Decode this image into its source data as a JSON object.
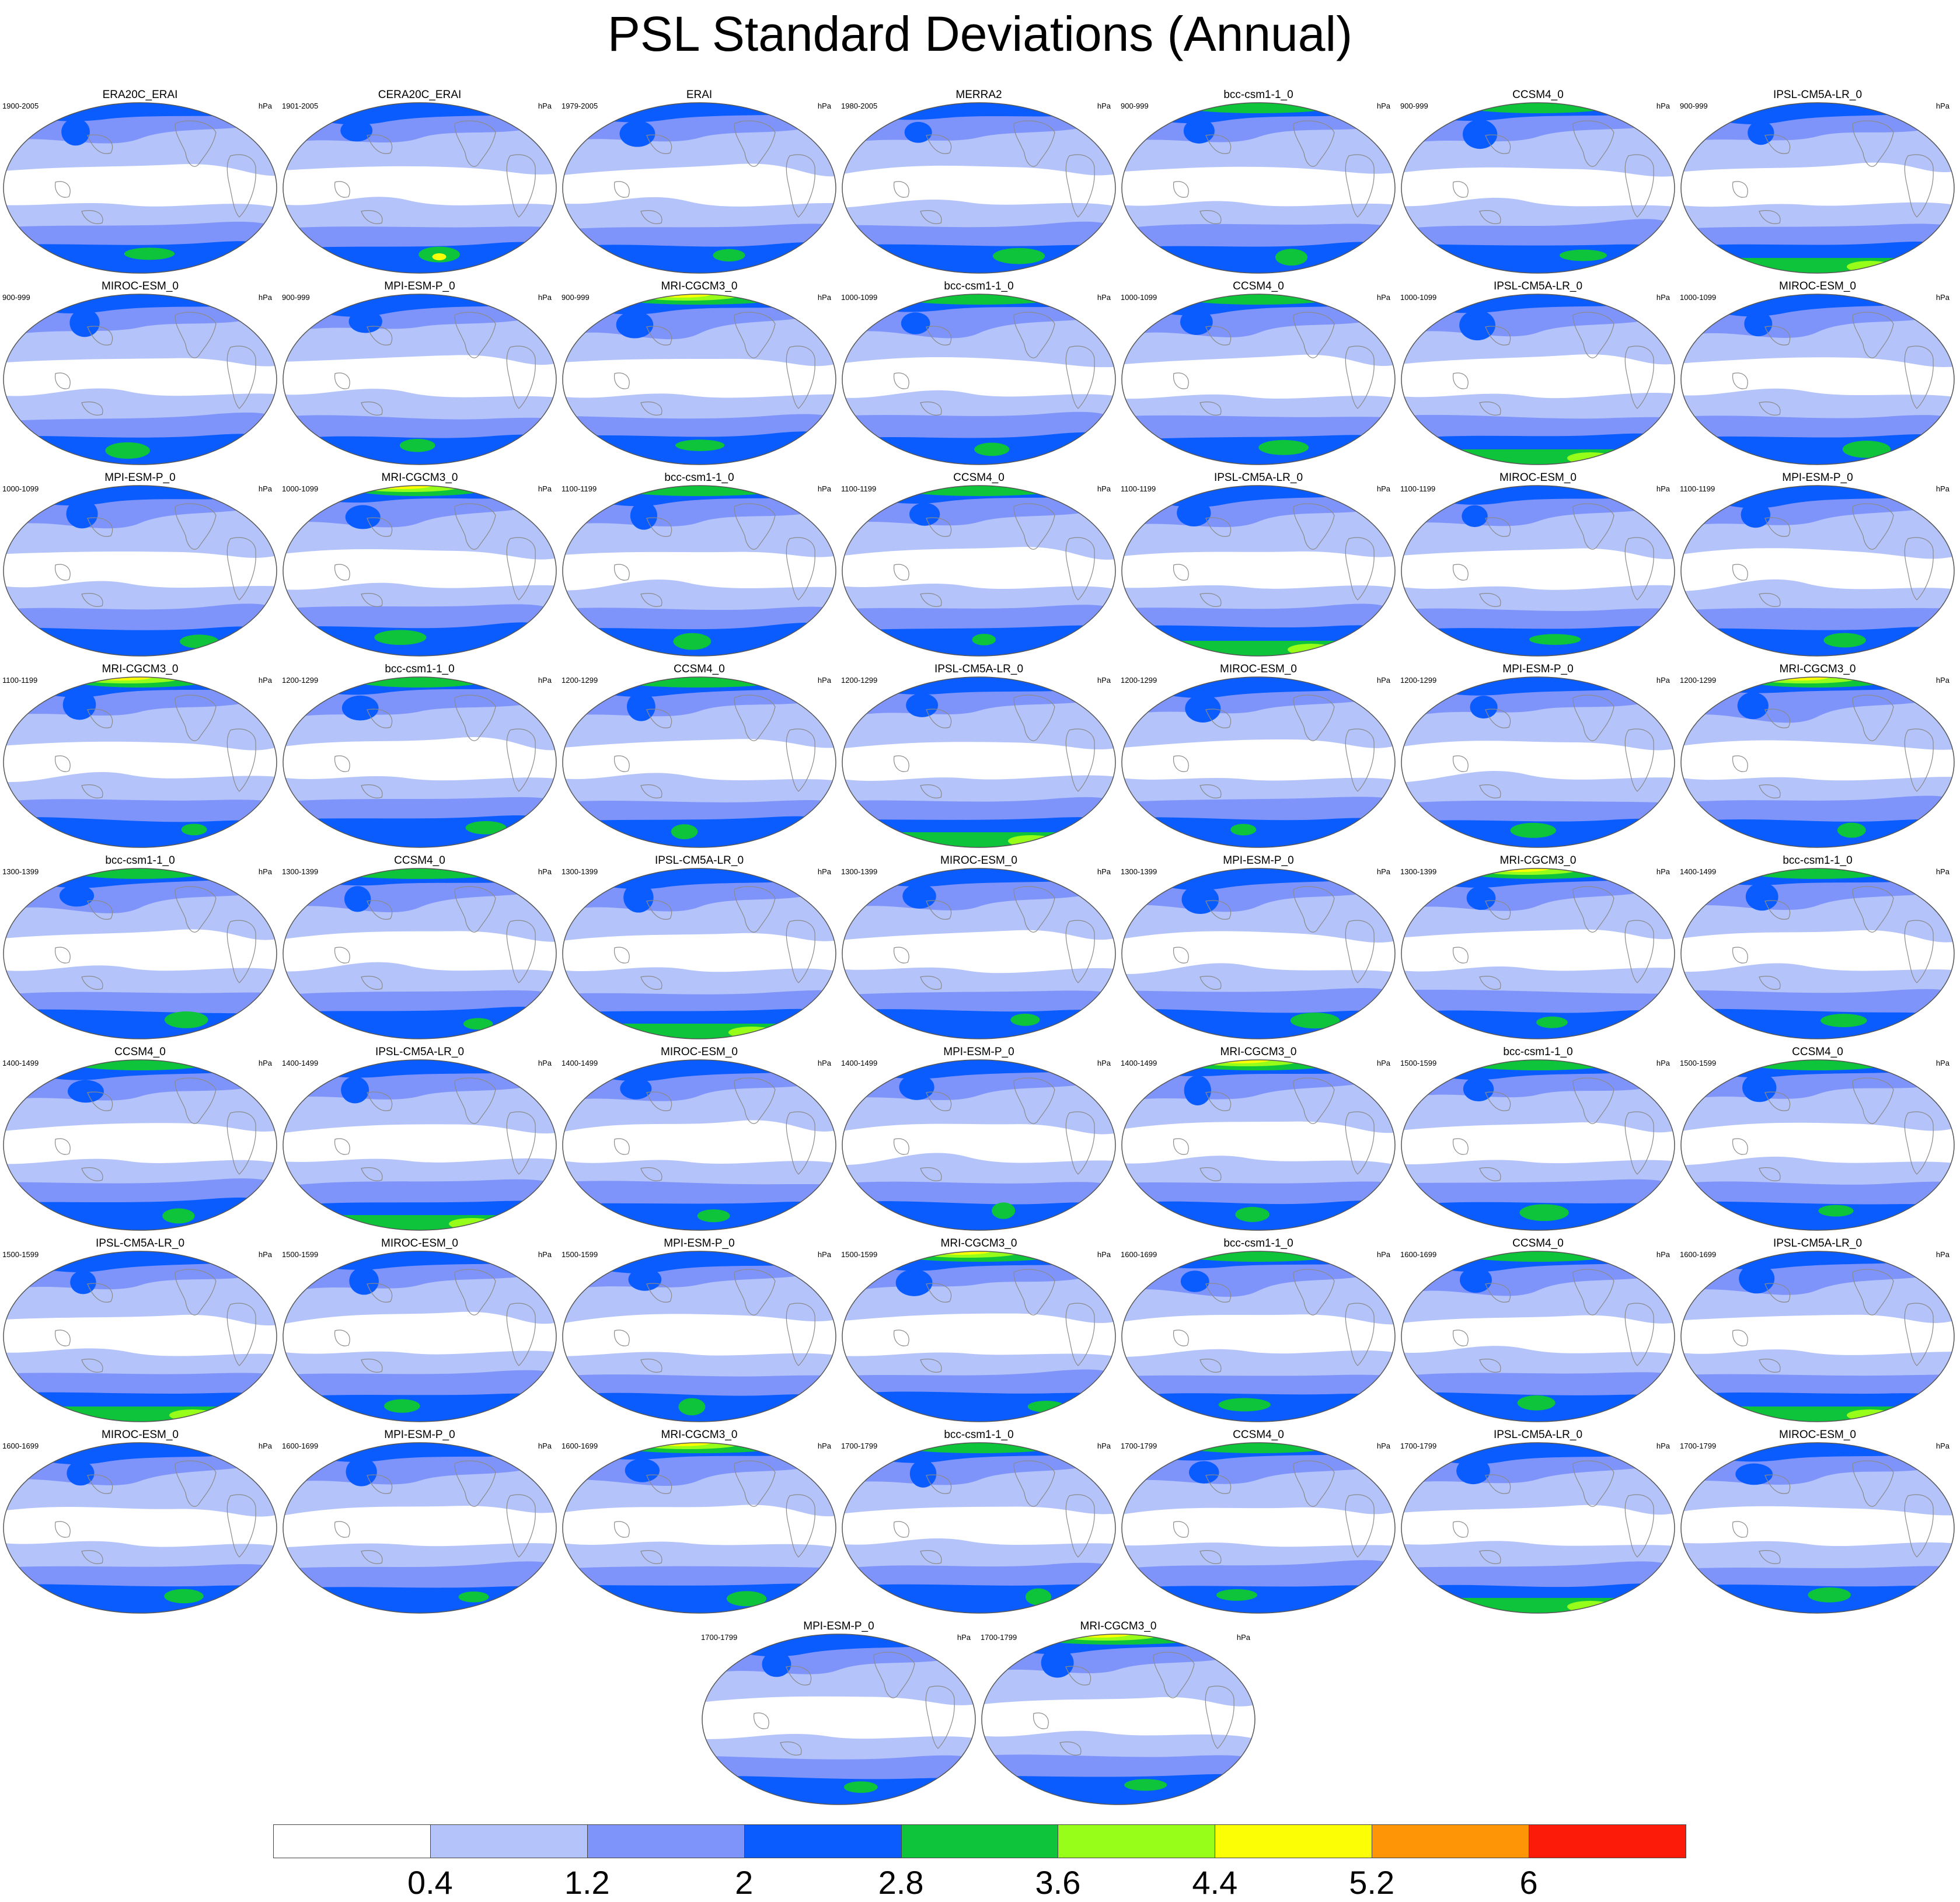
{
  "title": "PSL Standard Deviations (Annual)",
  "units": "hPa",
  "colorbar": {
    "levels": [
      "0.4",
      "1.2",
      "2",
      "2.8",
      "3.6",
      "4.4",
      "5.2",
      "6"
    ],
    "colors": [
      "#ffffff",
      "#b4c3fa",
      "#7f94fa",
      "#0a5cff",
      "#0dc43a",
      "#96fe19",
      "#fcfe05",
      "#fe9506",
      "#fc1a08"
    ]
  },
  "panels": [
    {
      "name": "ERA20C_ERAI",
      "period": "1900-2005"
    },
    {
      "name": "CERA20C_ERAI",
      "period": "1901-2005"
    },
    {
      "name": "ERAI",
      "period": "1979-2005"
    },
    {
      "name": "MERRA2",
      "period": "1980-2005"
    },
    {
      "name": "bcc-csm1-1_0",
      "period": "900-999"
    },
    {
      "name": "CCSM4_0",
      "period": "900-999"
    },
    {
      "name": "IPSL-CM5A-LR_0",
      "period": "900-999"
    },
    {
      "name": "MIROC-ESM_0",
      "period": "900-999"
    },
    {
      "name": "MPI-ESM-P_0",
      "period": "900-999"
    },
    {
      "name": "MRI-CGCM3_0",
      "period": "900-999"
    },
    {
      "name": "bcc-csm1-1_0",
      "period": "1000-1099"
    },
    {
      "name": "CCSM4_0",
      "period": "1000-1099"
    },
    {
      "name": "IPSL-CM5A-LR_0",
      "period": "1000-1099"
    },
    {
      "name": "MIROC-ESM_0",
      "period": "1000-1099"
    },
    {
      "name": "MPI-ESM-P_0",
      "period": "1000-1099"
    },
    {
      "name": "MRI-CGCM3_0",
      "period": "1000-1099"
    },
    {
      "name": "bcc-csm1-1_0",
      "period": "1100-1199"
    },
    {
      "name": "CCSM4_0",
      "period": "1100-1199"
    },
    {
      "name": "IPSL-CM5A-LR_0",
      "period": "1100-1199"
    },
    {
      "name": "MIROC-ESM_0",
      "period": "1100-1199"
    },
    {
      "name": "MPI-ESM-P_0",
      "period": "1100-1199"
    },
    {
      "name": "MRI-CGCM3_0",
      "period": "1100-1199"
    },
    {
      "name": "bcc-csm1-1_0",
      "period": "1200-1299"
    },
    {
      "name": "CCSM4_0",
      "period": "1200-1299"
    },
    {
      "name": "IPSL-CM5A-LR_0",
      "period": "1200-1299"
    },
    {
      "name": "MIROC-ESM_0",
      "period": "1200-1299"
    },
    {
      "name": "MPI-ESM-P_0",
      "period": "1200-1299"
    },
    {
      "name": "MRI-CGCM3_0",
      "period": "1200-1299"
    },
    {
      "name": "bcc-csm1-1_0",
      "period": "1300-1399"
    },
    {
      "name": "CCSM4_0",
      "period": "1300-1399"
    },
    {
      "name": "IPSL-CM5A-LR_0",
      "period": "1300-1399"
    },
    {
      "name": "MIROC-ESM_0",
      "period": "1300-1399"
    },
    {
      "name": "MPI-ESM-P_0",
      "period": "1300-1399"
    },
    {
      "name": "MRI-CGCM3_0",
      "period": "1300-1399"
    },
    {
      "name": "bcc-csm1-1_0",
      "period": "1400-1499"
    },
    {
      "name": "CCSM4_0",
      "period": "1400-1499"
    },
    {
      "name": "IPSL-CM5A-LR_0",
      "period": "1400-1499"
    },
    {
      "name": "MIROC-ESM_0",
      "period": "1400-1499"
    },
    {
      "name": "MPI-ESM-P_0",
      "period": "1400-1499"
    },
    {
      "name": "MRI-CGCM3_0",
      "period": "1400-1499"
    },
    {
      "name": "bcc-csm1-1_0",
      "period": "1500-1599"
    },
    {
      "name": "CCSM4_0",
      "period": "1500-1599"
    },
    {
      "name": "IPSL-CM5A-LR_0",
      "period": "1500-1599"
    },
    {
      "name": "MIROC-ESM_0",
      "period": "1500-1599"
    },
    {
      "name": "MPI-ESM-P_0",
      "period": "1500-1599"
    },
    {
      "name": "MRI-CGCM3_0",
      "period": "1500-1599"
    },
    {
      "name": "bcc-csm1-1_0",
      "period": "1600-1699"
    },
    {
      "name": "CCSM4_0",
      "period": "1600-1699"
    },
    {
      "name": "IPSL-CM5A-LR_0",
      "period": "1600-1699"
    },
    {
      "name": "MIROC-ESM_0",
      "period": "1600-1699"
    },
    {
      "name": "MPI-ESM-P_0",
      "period": "1600-1699"
    },
    {
      "name": "MRI-CGCM3_0",
      "period": "1600-1699"
    },
    {
      "name": "bcc-csm1-1_0",
      "period": "1700-1799"
    },
    {
      "name": "CCSM4_0",
      "period": "1700-1799"
    },
    {
      "name": "IPSL-CM5A-LR_0",
      "period": "1700-1799"
    },
    {
      "name": "MIROC-ESM_0",
      "period": "1700-1799"
    },
    {
      "name": "MPI-ESM-P_0",
      "period": "1700-1799"
    },
    {
      "name": "MRI-CGCM3_0",
      "period": "1700-1799"
    }
  ]
}
